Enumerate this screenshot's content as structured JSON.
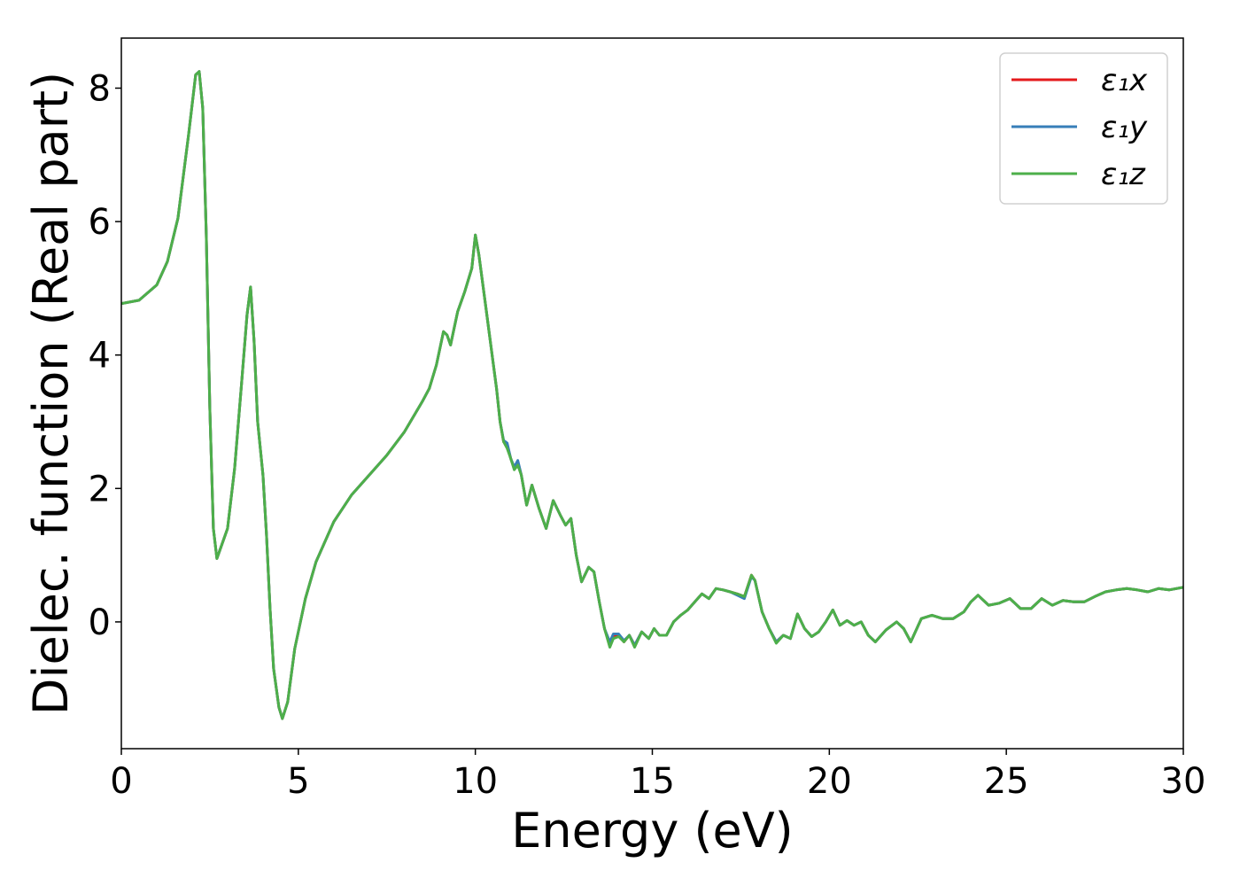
{
  "chart_data": {
    "type": "line",
    "xlabel": "Energy (eV)",
    "ylabel": "Dielec. function (Real part)",
    "xlim": [
      0,
      30
    ],
    "ylim": [
      -1.9,
      8.75
    ],
    "xticks": [
      0,
      5,
      10,
      15,
      20,
      25,
      30
    ],
    "yticks": [
      0,
      2,
      4,
      6,
      8
    ],
    "xtick_labels": [
      "0",
      "5",
      "10",
      "15",
      "20",
      "25",
      "30"
    ],
    "ytick_labels": [
      "0",
      "2",
      "4",
      "6",
      "8"
    ],
    "grid": false,
    "legend_position": "top-right",
    "series": [
      {
        "name": "ε₁x",
        "color": "#e41a1c",
        "x": [
          0,
          0.5,
          1.0,
          1.3,
          1.6,
          1.9,
          2.1,
          2.2,
          2.3,
          2.4,
          2.5,
          2.6,
          2.7,
          2.8,
          3.0,
          3.2,
          3.4,
          3.55,
          3.65,
          3.75,
          3.85,
          4.0,
          4.1,
          4.2,
          4.3,
          4.45,
          4.55,
          4.7,
          4.9,
          5.2,
          5.5,
          6.0,
          6.5,
          7.0,
          7.5,
          8.0,
          8.5,
          8.7,
          8.9,
          9.1,
          9.2,
          9.3,
          9.4,
          9.5,
          9.7,
          9.9,
          10.0,
          10.1,
          10.3,
          10.5,
          10.6,
          10.7,
          10.8,
          10.9,
          11.0,
          11.1,
          11.2,
          11.3,
          11.45,
          11.6,
          11.8,
          12.0,
          12.2,
          12.4,
          12.55,
          12.7,
          12.85,
          13.0,
          13.2,
          13.35,
          13.5,
          13.65,
          13.8,
          13.9,
          14.05,
          14.2,
          14.35,
          14.5,
          14.7,
          14.9,
          15.05,
          15.2,
          15.4,
          15.6,
          15.8,
          16.0,
          16.2,
          16.4,
          16.6,
          16.8,
          17.0,
          17.2,
          17.4,
          17.6,
          17.8,
          17.9,
          18.1,
          18.3,
          18.5,
          18.7,
          18.9,
          19.1,
          19.3,
          19.5,
          19.7,
          19.9,
          20.1,
          20.3,
          20.5,
          20.7,
          20.9,
          21.1,
          21.3,
          21.6,
          21.9,
          22.1,
          22.3,
          22.6,
          22.9,
          23.2,
          23.5,
          23.8,
          24.0,
          24.2,
          24.5,
          24.8,
          25.1,
          25.4,
          25.7,
          26.0,
          26.3,
          26.6,
          26.9,
          27.2,
          27.5,
          27.8,
          28.1,
          28.4,
          28.7,
          29.0,
          29.3,
          29.6,
          30.0
        ],
        "y": [
          4.77,
          4.82,
          5.05,
          5.4,
          6.05,
          7.3,
          8.2,
          8.25,
          7.7,
          5.8,
          3.2,
          1.4,
          0.95,
          1.1,
          1.4,
          2.3,
          3.6,
          4.6,
          5.02,
          4.2,
          3.0,
          2.2,
          1.3,
          0.2,
          -0.7,
          -1.28,
          -1.45,
          -1.2,
          -0.4,
          0.35,
          0.9,
          1.5,
          1.9,
          2.2,
          2.5,
          2.85,
          3.3,
          3.5,
          3.85,
          4.35,
          4.3,
          4.15,
          4.4,
          4.65,
          4.95,
          5.3,
          5.8,
          5.5,
          4.7,
          3.9,
          3.5,
          3.0,
          2.7,
          2.65,
          2.45,
          2.3,
          2.4,
          2.2,
          1.75,
          2.05,
          1.7,
          1.4,
          1.82,
          1.6,
          1.45,
          1.55,
          1.0,
          0.6,
          0.82,
          0.75,
          0.3,
          -0.1,
          -0.35,
          -0.2,
          -0.2,
          -0.3,
          -0.2,
          -0.35,
          -0.15,
          -0.25,
          -0.1,
          -0.2,
          -0.2,
          0.0,
          0.1,
          0.18,
          0.3,
          0.42,
          0.35,
          0.5,
          0.48,
          0.45,
          0.42,
          0.38,
          0.7,
          0.62,
          0.15,
          -0.1,
          -0.3,
          -0.2,
          -0.25,
          0.12,
          -0.1,
          -0.22,
          -0.15,
          0.0,
          0.18,
          -0.05,
          0.02,
          -0.05,
          0.0,
          -0.2,
          -0.3,
          -0.12,
          0.0,
          -0.1,
          -0.3,
          0.05,
          0.1,
          0.05,
          0.05,
          0.15,
          0.3,
          0.4,
          0.25,
          0.28,
          0.35,
          0.2,
          0.2,
          0.35,
          0.25,
          0.32,
          0.3,
          0.3,
          0.38,
          0.45,
          0.48,
          0.5,
          0.48,
          0.45,
          0.5,
          0.48,
          0.52
        ]
      },
      {
        "name": "ε₁y",
        "color": "#377eb8",
        "x": [
          0,
          0.5,
          1.0,
          1.3,
          1.6,
          1.9,
          2.1,
          2.2,
          2.3,
          2.4,
          2.5,
          2.6,
          2.7,
          2.8,
          3.0,
          3.2,
          3.4,
          3.55,
          3.65,
          3.75,
          3.85,
          4.0,
          4.1,
          4.2,
          4.3,
          4.45,
          4.55,
          4.7,
          4.9,
          5.2,
          5.5,
          6.0,
          6.5,
          7.0,
          7.5,
          8.0,
          8.5,
          8.7,
          8.9,
          9.1,
          9.2,
          9.3,
          9.4,
          9.5,
          9.7,
          9.9,
          10.0,
          10.1,
          10.3,
          10.5,
          10.6,
          10.7,
          10.8,
          10.9,
          11.0,
          11.1,
          11.2,
          11.3,
          11.45,
          11.6,
          11.8,
          12.0,
          12.2,
          12.4,
          12.55,
          12.7,
          12.85,
          13.0,
          13.2,
          13.35,
          13.5,
          13.65,
          13.8,
          13.9,
          14.05,
          14.2,
          14.35,
          14.5,
          14.7,
          14.9,
          15.05,
          15.2,
          15.4,
          15.6,
          15.8,
          16.0,
          16.2,
          16.4,
          16.6,
          16.8,
          17.0,
          17.2,
          17.4,
          17.6,
          17.8,
          17.9,
          18.1,
          18.3,
          18.5,
          18.7,
          18.9,
          19.1,
          19.3,
          19.5,
          19.7,
          19.9,
          20.1,
          20.3,
          20.5,
          20.7,
          20.9,
          21.1,
          21.3,
          21.6,
          21.9,
          22.1,
          22.3,
          22.6,
          22.9,
          23.2,
          23.5,
          23.8,
          24.0,
          24.2,
          24.5,
          24.8,
          25.1,
          25.4,
          25.7,
          26.0,
          26.3,
          26.6,
          26.9,
          27.2,
          27.5,
          27.8,
          28.1,
          28.4,
          28.7,
          29.0,
          29.3,
          29.6,
          30.0
        ],
        "y": [
          4.77,
          4.82,
          5.05,
          5.4,
          6.05,
          7.3,
          8.2,
          8.25,
          7.7,
          5.8,
          3.2,
          1.4,
          0.95,
          1.1,
          1.4,
          2.3,
          3.6,
          4.6,
          5.02,
          4.2,
          3.0,
          2.2,
          1.3,
          0.2,
          -0.7,
          -1.28,
          -1.45,
          -1.2,
          -0.4,
          0.35,
          0.9,
          1.5,
          1.9,
          2.2,
          2.5,
          2.85,
          3.3,
          3.5,
          3.85,
          4.35,
          4.3,
          4.15,
          4.4,
          4.65,
          4.95,
          5.3,
          5.8,
          5.5,
          4.7,
          3.9,
          3.5,
          3.0,
          2.72,
          2.68,
          2.45,
          2.32,
          2.42,
          2.2,
          1.75,
          2.05,
          1.7,
          1.4,
          1.82,
          1.6,
          1.45,
          1.55,
          1.0,
          0.6,
          0.82,
          0.75,
          0.3,
          -0.1,
          -0.3,
          -0.18,
          -0.18,
          -0.28,
          -0.2,
          -0.35,
          -0.15,
          -0.25,
          -0.1,
          -0.2,
          -0.2,
          0.0,
          0.1,
          0.18,
          0.3,
          0.42,
          0.35,
          0.5,
          0.48,
          0.45,
          0.4,
          0.35,
          0.68,
          0.62,
          0.15,
          -0.1,
          -0.3,
          -0.2,
          -0.25,
          0.12,
          -0.1,
          -0.22,
          -0.15,
          0.0,
          0.18,
          -0.05,
          0.02,
          -0.05,
          0.0,
          -0.2,
          -0.3,
          -0.12,
          0.0,
          -0.1,
          -0.3,
          0.05,
          0.1,
          0.05,
          0.05,
          0.15,
          0.3,
          0.4,
          0.25,
          0.28,
          0.35,
          0.2,
          0.2,
          0.35,
          0.25,
          0.32,
          0.3,
          0.3,
          0.38,
          0.45,
          0.48,
          0.5,
          0.48,
          0.45,
          0.5,
          0.48,
          0.52
        ]
      },
      {
        "name": "ε₁z",
        "color": "#4daf4a",
        "x": [
          0,
          0.5,
          1.0,
          1.3,
          1.6,
          1.9,
          2.1,
          2.2,
          2.3,
          2.4,
          2.5,
          2.6,
          2.7,
          2.8,
          3.0,
          3.2,
          3.4,
          3.55,
          3.65,
          3.75,
          3.85,
          4.0,
          4.1,
          4.2,
          4.3,
          4.45,
          4.55,
          4.7,
          4.9,
          5.2,
          5.5,
          6.0,
          6.5,
          7.0,
          7.5,
          8.0,
          8.5,
          8.7,
          8.9,
          9.1,
          9.2,
          9.3,
          9.4,
          9.5,
          9.7,
          9.9,
          10.0,
          10.1,
          10.3,
          10.5,
          10.6,
          10.7,
          10.8,
          10.9,
          11.0,
          11.1,
          11.2,
          11.3,
          11.45,
          11.6,
          11.8,
          12.0,
          12.2,
          12.4,
          12.55,
          12.7,
          12.85,
          13.0,
          13.2,
          13.35,
          13.5,
          13.65,
          13.8,
          13.9,
          14.05,
          14.2,
          14.35,
          14.5,
          14.7,
          14.9,
          15.05,
          15.2,
          15.4,
          15.6,
          15.8,
          16.0,
          16.2,
          16.4,
          16.6,
          16.8,
          17.0,
          17.2,
          17.4,
          17.6,
          17.8,
          17.9,
          18.1,
          18.3,
          18.5,
          18.7,
          18.9,
          19.1,
          19.3,
          19.5,
          19.7,
          19.9,
          20.1,
          20.3,
          20.5,
          20.7,
          20.9,
          21.1,
          21.3,
          21.6,
          21.9,
          22.1,
          22.3,
          22.6,
          22.9,
          23.2,
          23.5,
          23.8,
          24.0,
          24.2,
          24.5,
          24.8,
          25.1,
          25.4,
          25.7,
          26.0,
          26.3,
          26.6,
          26.9,
          27.2,
          27.5,
          27.8,
          28.1,
          28.4,
          28.7,
          29.0,
          29.3,
          29.6,
          30.0
        ],
        "y": [
          4.77,
          4.82,
          5.05,
          5.4,
          6.05,
          7.3,
          8.2,
          8.25,
          7.7,
          5.8,
          3.2,
          1.4,
          0.95,
          1.1,
          1.4,
          2.3,
          3.6,
          4.6,
          5.02,
          4.2,
          3.0,
          2.2,
          1.3,
          0.2,
          -0.7,
          -1.28,
          -1.45,
          -1.2,
          -0.4,
          0.35,
          0.9,
          1.5,
          1.9,
          2.2,
          2.5,
          2.85,
          3.3,
          3.5,
          3.85,
          4.35,
          4.3,
          4.15,
          4.4,
          4.65,
          4.95,
          5.3,
          5.8,
          5.5,
          4.7,
          3.9,
          3.5,
          3.0,
          2.7,
          2.6,
          2.45,
          2.28,
          2.35,
          2.2,
          1.75,
          2.05,
          1.7,
          1.4,
          1.82,
          1.6,
          1.45,
          1.55,
          1.0,
          0.6,
          0.82,
          0.75,
          0.3,
          -0.1,
          -0.38,
          -0.25,
          -0.22,
          -0.3,
          -0.2,
          -0.38,
          -0.15,
          -0.25,
          -0.1,
          -0.2,
          -0.2,
          0.0,
          0.1,
          0.18,
          0.3,
          0.42,
          0.35,
          0.5,
          0.48,
          0.45,
          0.42,
          0.38,
          0.7,
          0.62,
          0.15,
          -0.1,
          -0.32,
          -0.2,
          -0.25,
          0.12,
          -0.1,
          -0.22,
          -0.15,
          0.0,
          0.18,
          -0.05,
          0.02,
          -0.05,
          0.0,
          -0.2,
          -0.3,
          -0.12,
          0.0,
          -0.1,
          -0.3,
          0.05,
          0.1,
          0.05,
          0.05,
          0.15,
          0.3,
          0.4,
          0.25,
          0.28,
          0.35,
          0.2,
          0.2,
          0.35,
          0.25,
          0.32,
          0.3,
          0.3,
          0.38,
          0.45,
          0.48,
          0.5,
          0.48,
          0.45,
          0.5,
          0.48,
          0.52
        ]
      }
    ]
  }
}
